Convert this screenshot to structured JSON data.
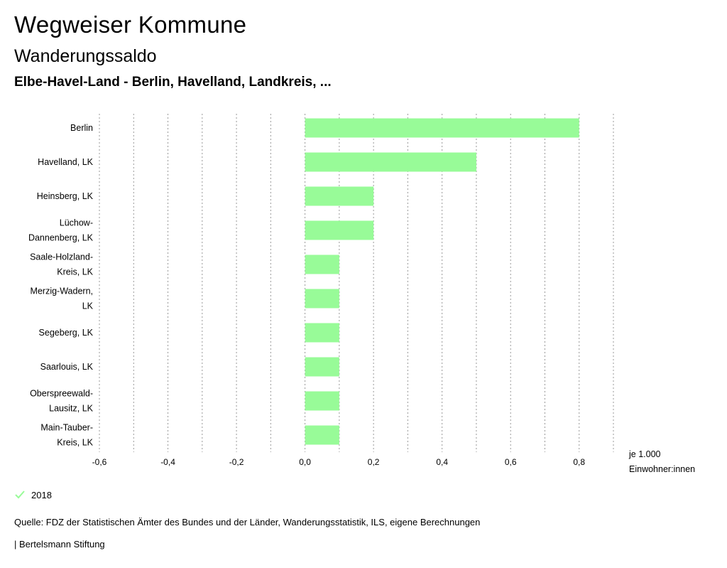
{
  "header": {
    "title": "Wegweiser Kommune",
    "subtitle": "Wanderungssaldo",
    "region": "Elbe-Havel-Land - Berlin, Havelland, Landkreis, ..."
  },
  "chart_data": {
    "type": "bar",
    "orientation": "horizontal",
    "categories": [
      [
        "Berlin"
      ],
      [
        "Havelland, LK"
      ],
      [
        "Heinsberg, LK"
      ],
      [
        "Lüchow-",
        "Dannenberg, LK"
      ],
      [
        "Saale-Holzland-",
        "Kreis, LK"
      ],
      [
        "Merzig-Wadern,",
        "LK"
      ],
      [
        "Segeberg, LK"
      ],
      [
        "Saarlouis, LK"
      ],
      [
        "Oberspreewald-",
        "Lausitz, LK"
      ],
      [
        "Main-Tauber-",
        "Kreis, LK"
      ]
    ],
    "series": [
      {
        "name": "2018",
        "color": "#98fb98",
        "values": [
          0.8,
          0.5,
          0.2,
          0.2,
          0.1,
          0.1,
          0.1,
          0.1,
          0.1,
          0.1
        ]
      }
    ],
    "xlim": [
      -0.6,
      0.9
    ],
    "ticks": [
      -0.6,
      -0.4,
      -0.2,
      0.0,
      0.2,
      0.4,
      0.6,
      0.8
    ],
    "tick_labels": [
      "-0,6",
      "-0,4",
      "-0,2",
      "0,0",
      "0,2",
      "0,4",
      "0,6",
      "0,8"
    ],
    "gridlines": [
      -0.6,
      -0.5,
      -0.4,
      -0.3,
      -0.2,
      -0.1,
      0.0,
      0.1,
      0.2,
      0.3,
      0.4,
      0.5,
      0.6,
      0.7,
      0.8,
      0.9
    ],
    "unit_label": [
      "je 1.000",
      "Einwohner:innen"
    ],
    "grid": true,
    "grid_color": "#999999"
  },
  "legend": {
    "label": "2018",
    "color": "#98fb98"
  },
  "footer": {
    "source": "Quelle: FDZ der Statistischen Ämter des Bundes und der Länder, Wanderungsstatistik, ILS, eigene Berechnungen",
    "brand": "| Bertelsmann Stiftung"
  }
}
